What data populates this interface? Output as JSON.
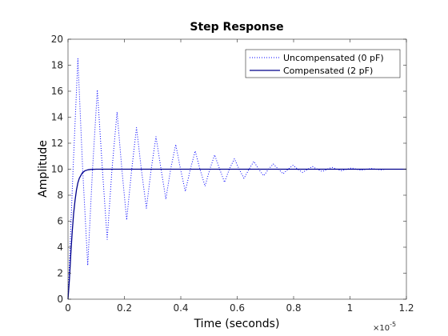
{
  "chart_data": {
    "type": "line",
    "title": "Step Response",
    "xlabel": "Time (seconds)",
    "ylabel": "Amplitude",
    "x_exponent_label": "×10",
    "x_exponent_power": "-5",
    "xlim": [
      0,
      1.2
    ],
    "ylim": [
      0,
      20
    ],
    "x_scale_factor": 1e-05,
    "xticks": [
      0,
      0.2,
      0.4,
      0.6,
      0.8,
      1.0,
      1.2
    ],
    "xtick_labels": [
      "0",
      "0.2",
      "0.4",
      "0.6",
      "0.8",
      "1",
      "1.2"
    ],
    "yticks": [
      0,
      2,
      4,
      6,
      8,
      10,
      12,
      14,
      16,
      18,
      20
    ],
    "ytick_labels": [
      "0",
      "2",
      "4",
      "6",
      "8",
      "10",
      "12",
      "14",
      "16",
      "18",
      "20"
    ],
    "grid": false,
    "legend_position": "top-right",
    "series": [
      {
        "name": "Uncompensated (0 pF)",
        "color": "#0000ff",
        "style": "dotted",
        "x": [
          0,
          0.018,
          0.035,
          0.052,
          0.07,
          0.087,
          0.104,
          0.122,
          0.139,
          0.156,
          0.174,
          0.191,
          0.208,
          0.226,
          0.243,
          0.26,
          0.278,
          0.295,
          0.312,
          0.33,
          0.347,
          0.364,
          0.382,
          0.399,
          0.416,
          0.434,
          0.451,
          0.468,
          0.486,
          0.503,
          0.52,
          0.538,
          0.555,
          0.572,
          0.59,
          0.607,
          0.624,
          0.642,
          0.659,
          0.676,
          0.694,
          0.711,
          0.728,
          0.746,
          0.763,
          0.78,
          0.798,
          0.815,
          0.832,
          0.85,
          0.867,
          0.884,
          0.902,
          0.919,
          0.936,
          0.954,
          0.971,
          0.988,
          1.006,
          1.023,
          1.04,
          1.058,
          1.075,
          1.092,
          1.11,
          1.127,
          1.15
        ],
        "y": [
          0,
          10,
          18.5,
          10,
          2.6,
          10,
          16.1,
          10,
          4.6,
          10,
          14.4,
          10,
          6.1,
          10,
          13.2,
          10,
          7.0,
          10,
          12.5,
          10,
          7.7,
          10,
          11.9,
          10,
          8.3,
          10,
          11.4,
          10,
          8.7,
          10,
          11.1,
          10,
          9.0,
          10,
          10.8,
          10,
          9.3,
          10,
          10.6,
          10,
          9.5,
          10,
          10.4,
          10,
          9.65,
          10,
          10.3,
          10,
          9.75,
          10,
          10.2,
          10,
          9.82,
          10,
          10.14,
          10,
          9.88,
          10,
          10.1,
          10,
          9.92,
          10,
          10.06,
          10,
          9.95,
          10,
          10
        ]
      },
      {
        "name": "Compensated (2 pF)",
        "color": "#00008b",
        "style": "solid",
        "x": [
          0,
          0.005,
          0.01,
          0.015,
          0.02,
          0.025,
          0.03,
          0.035,
          0.04,
          0.05,
          0.06,
          0.07,
          0.08,
          0.1,
          0.12,
          0.15,
          0.2,
          0.3,
          0.5,
          0.8,
          1.0,
          1.2
        ],
        "y": [
          0,
          1.5,
          3.5,
          5.2,
          6.6,
          7.6,
          8.4,
          8.95,
          9.3,
          9.7,
          9.88,
          9.95,
          9.98,
          10,
          10,
          10,
          10,
          10,
          10,
          10,
          10,
          10
        ]
      }
    ]
  }
}
